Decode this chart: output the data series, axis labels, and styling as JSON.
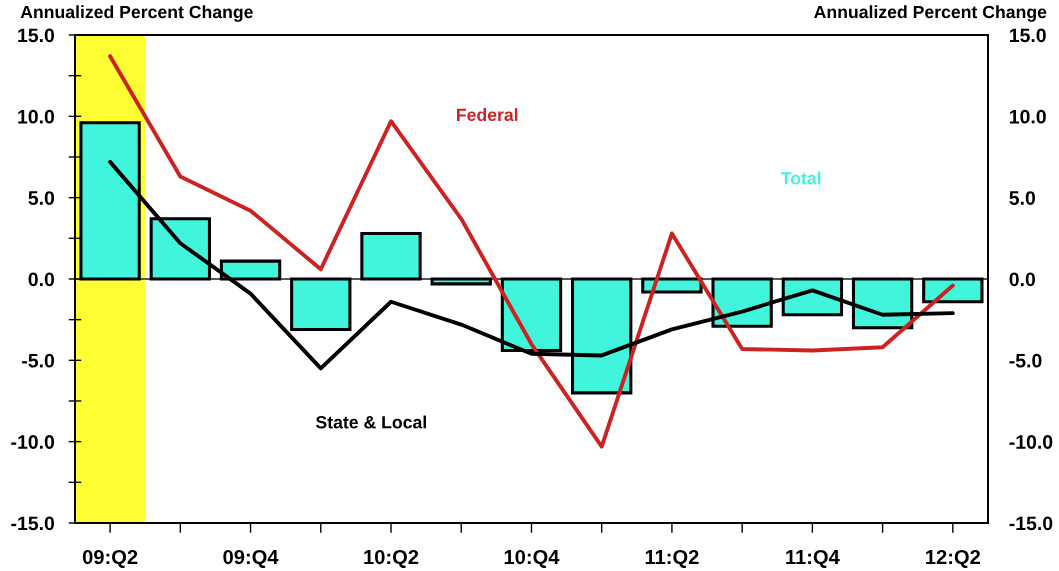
{
  "chart_data": {
    "type": "bar",
    "ylabel": "Annualized Percent Change",
    "y2label": "Annualized Percent Change",
    "categories": [
      "09:Q2",
      null,
      "09:Q4",
      null,
      "10:Q2",
      null,
      "10:Q4",
      null,
      "11:Q2",
      null,
      "11:Q4",
      null,
      "12:Q2"
    ],
    "series": [
      {
        "name": "Total",
        "color": "#40f5dc",
        "values": [
          9.6,
          3.7,
          1.1,
          -3.1,
          2.8,
          -0.3,
          -4.4,
          -7.0,
          -0.8,
          -2.9,
          -2.2,
          -3.0,
          -1.4
        ]
      },
      {
        "name": "Federal",
        "type": "line",
        "color": "#cc2222",
        "values": [
          13.7,
          6.3,
          4.2,
          0.6,
          9.7,
          3.7,
          -4.0,
          -10.3,
          2.8,
          -4.3,
          -4.4,
          -4.2,
          -0.4
        ]
      },
      {
        "name": "State & Local",
        "type": "line",
        "color": "#000000",
        "values": [
          7.2,
          2.2,
          -0.9,
          -5.5,
          -1.4,
          -2.8,
          -4.6,
          -4.7,
          -3.1,
          -2.0,
          -0.7,
          -2.2,
          -2.1
        ]
      }
    ],
    "ylim": [
      -15,
      15
    ],
    "yticks": [
      {
        "value": -15,
        "label": "-15.0"
      },
      {
        "value": -12.5,
        "label": null
      },
      {
        "value": -10,
        "label": "-10.0"
      },
      {
        "value": -7.5,
        "label": null
      },
      {
        "value": -5,
        "label": "-5.0"
      },
      {
        "value": -2.5,
        "label": null
      },
      {
        "value": 0,
        "label": "0.0"
      },
      {
        "value": 2.5,
        "label": null
      },
      {
        "value": 5,
        "label": "5.0"
      },
      {
        "value": 7.5,
        "label": null
      },
      {
        "value": 10,
        "label": "10.0"
      },
      {
        "value": 12.5,
        "label": null
      },
      {
        "value": 15,
        "label": "15.0"
      }
    ],
    "y2lim": [
      -15,
      15
    ],
    "y2ticks": [
      {
        "value": -15,
        "label": "-15.0"
      },
      {
        "value": -10,
        "label": "-10.0"
      },
      {
        "value": -5,
        "label": "-5.0"
      },
      {
        "value": 0,
        "label": "0.0"
      },
      {
        "value": 5,
        "label": "5.0"
      },
      {
        "value": 10,
        "label": "10.0"
      },
      {
        "value": 15,
        "label": "15.0"
      }
    ],
    "bands": [
      {
        "axis": "x",
        "from": "09:Q2",
        "to": "09:Q2",
        "color": "#ffff33"
      }
    ],
    "ref_lines": [
      {
        "axis": "y",
        "value": 0,
        "color": "#555555"
      }
    ],
    "grid": false,
    "legend": false
  }
}
